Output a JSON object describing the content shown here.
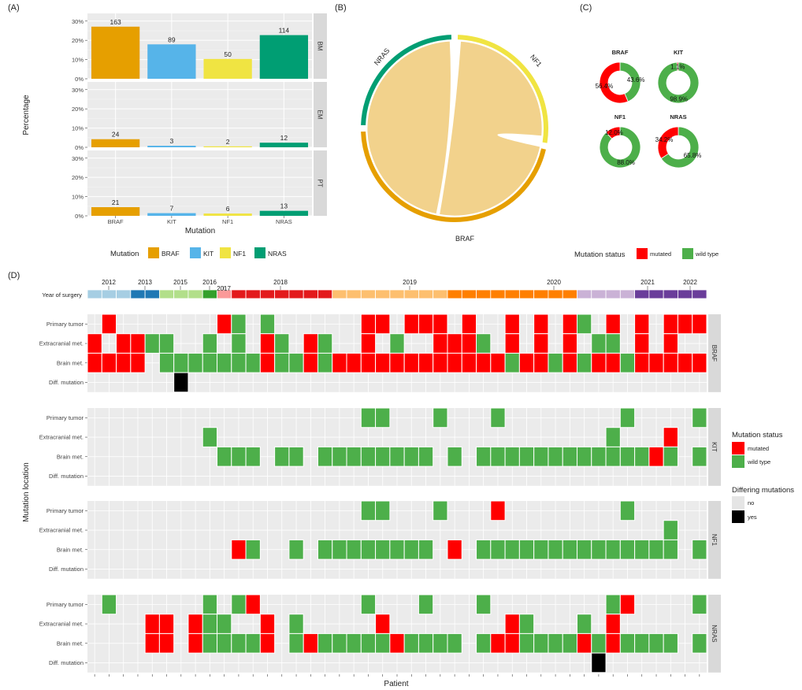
{
  "panel_labels": [
    "(A)",
    "(B)",
    "(C)",
    "(D)"
  ],
  "colors": {
    "BRAF": "#E69F00",
    "KIT": "#56B4E9",
    "NF1": "#F0E442",
    "NRAS": "#009E73",
    "mutated": "#FF0000",
    "wild_type": "#4DAF4A",
    "no": "#E5E5E5",
    "yes": "#000000",
    "panel_bg": "#EBEBEB",
    "strip_bg": "#D9D9D9",
    "chord_fill": "#F2D28C"
  },
  "chart_data": [
    {
      "id": "A",
      "type": "bar",
      "categories": [
        "BRAF",
        "KIT",
        "NF1",
        "NRAS"
      ],
      "facets": [
        "BM",
        "EM",
        "PT"
      ],
      "series": [
        {
          "facet": "BM",
          "values": [
            27.1,
            17.9,
            10.3,
            22.7
          ],
          "labels": [
            "163",
            "89",
            "50",
            "114"
          ]
        },
        {
          "facet": "EM",
          "values": [
            4.2,
            0.8,
            0.5,
            2.4
          ],
          "labels": [
            "24",
            "3",
            "2",
            "12"
          ]
        },
        {
          "facet": "PT",
          "values": [
            4.5,
            1.4,
            1.2,
            2.6
          ],
          "labels": [
            "21",
            "7",
            "6",
            "13"
          ]
        }
      ],
      "yticks": [
        "0%",
        "10%",
        "20%",
        "30%"
      ],
      "ylim": [
        0,
        34
      ],
      "xlabel": "Mutation",
      "ylabel": "Percentage",
      "legend_title": "Mutation",
      "legend_position": "bottom"
    },
    {
      "id": "B",
      "type": "chord",
      "sectors": [
        {
          "name": "BRAF",
          "from_deg": 103,
          "to_deg": 268
        },
        {
          "name": "NRAS",
          "from_deg": 272,
          "to_deg": 358
        },
        {
          "name": "NF1",
          "from_deg": 2,
          "to_deg": 99
        }
      ]
    },
    {
      "id": "C",
      "type": "pie",
      "donuts": [
        {
          "gene": "BRAF",
          "mutated": 56.4,
          "wild_type": 43.6,
          "labels": [
            "56.4%",
            "43.6%"
          ]
        },
        {
          "gene": "KIT",
          "mutated": 1.1,
          "wild_type": 98.9,
          "labels": [
            "1.1%",
            "98.9%"
          ]
        },
        {
          "gene": "NF1",
          "mutated": 12.0,
          "wild_type": 88.0,
          "labels": [
            "12.0%",
            "88.0%"
          ]
        },
        {
          "gene": "NRAS",
          "mutated": 34.2,
          "wild_type": 65.8,
          "labels": [
            "34.2%",
            "65.8%"
          ]
        }
      ],
      "legend_title": "Mutation status",
      "legend_labels": [
        "mutated",
        "wild type"
      ],
      "legend_position": "bottom"
    },
    {
      "id": "D",
      "type": "heatmap",
      "n_patients": 43,
      "year_row_label": "Year of surgery",
      "years": [
        {
          "label": "2012",
          "start": 0,
          "end": 3,
          "color": "#A6CEE3"
        },
        {
          "label": "2013",
          "start": 3,
          "end": 5,
          "color": "#1F78B4"
        },
        {
          "label": "2015",
          "start": 5,
          "end": 8,
          "color": "#B2DF8A"
        },
        {
          "label": "2016",
          "start": 8,
          "end": 9,
          "color": "#33A02C"
        },
        {
          "label": "2017",
          "start": 9,
          "end": 10,
          "color": "#FB9A99"
        },
        {
          "label": "2018",
          "start": 10,
          "end": 17,
          "color": "#E31A1C"
        },
        {
          "label": "2019",
          "start": 17,
          "end": 25,
          "color": "#FDBF6F"
        },
        {
          "label": "2020",
          "start": 25,
          "end": 34,
          "color": "#FF7F00"
        },
        {
          "label": "2021",
          "start": 34,
          "end": 38,
          "color": "#CAB2D6"
        },
        {
          "label": "2022",
          "start": 38,
          "end": 43,
          "color": "#6A3D9A"
        }
      ],
      "row_labels": [
        "Primary tumor",
        "Extracranial met.",
        "Brain met.",
        "Diff. mutation"
      ],
      "ylabel": "Mutation location",
      "xlabel": "Patient",
      "legend1_title": "Mutation status",
      "legend1_labels": [
        "mutated",
        "wild type"
      ],
      "legend2_title": "Differing mutations",
      "legend2_labels": [
        "no",
        "yes"
      ],
      "legend_position": "right",
      "encoding_key": {
        "M": "mutated",
        "W": "wild type",
        "Y": "differing mutation: yes",
        ".": "not available"
      },
      "genes": [
        {
          "name": "BRAF",
          "rows": [
            ".M.......MW.W......MM.MMM.M..M.M.MW.M.M.MMM",
            "M.MMWW..W.W.MW.MW..M.W..MMMW.M.M.M.WW.M.M..",
            "MMMM.WWWWWWWMWWMWMMMMMMMMMMMMWMMWMWMMWMMMMM",
            "......Y...................................."
          ]
        },
        {
          "name": "KIT",
          "rows": [
            "...................WW...W...W........W....W",
            "........W...........................W...M..",
            ".........WWW.WW.WWWWWWWW.W.WWWWWWWWWWWWMW.W",
            "..........................................."
          ]
        },
        {
          "name": "NF1",
          "rows": [
            "...................WW...W...M........W.....",
            "........................................W..",
            "..........MW..W.WWWWWWWW.M.WWWWWWWWWWWWWW.W",
            "..........................................."
          ]
        },
        {
          "name": "NRAS",
          "rows": [
            ".W......W.WM.......W...W...W........WM....W",
            "....MM.MWW..M.W.....M........MW...W.M......",
            "....MM.MWWWWM.WMWWWWWMWWWW.WMMWWWWMWMWWWW.W",
            "...................................Y......."
          ]
        }
      ]
    }
  ]
}
